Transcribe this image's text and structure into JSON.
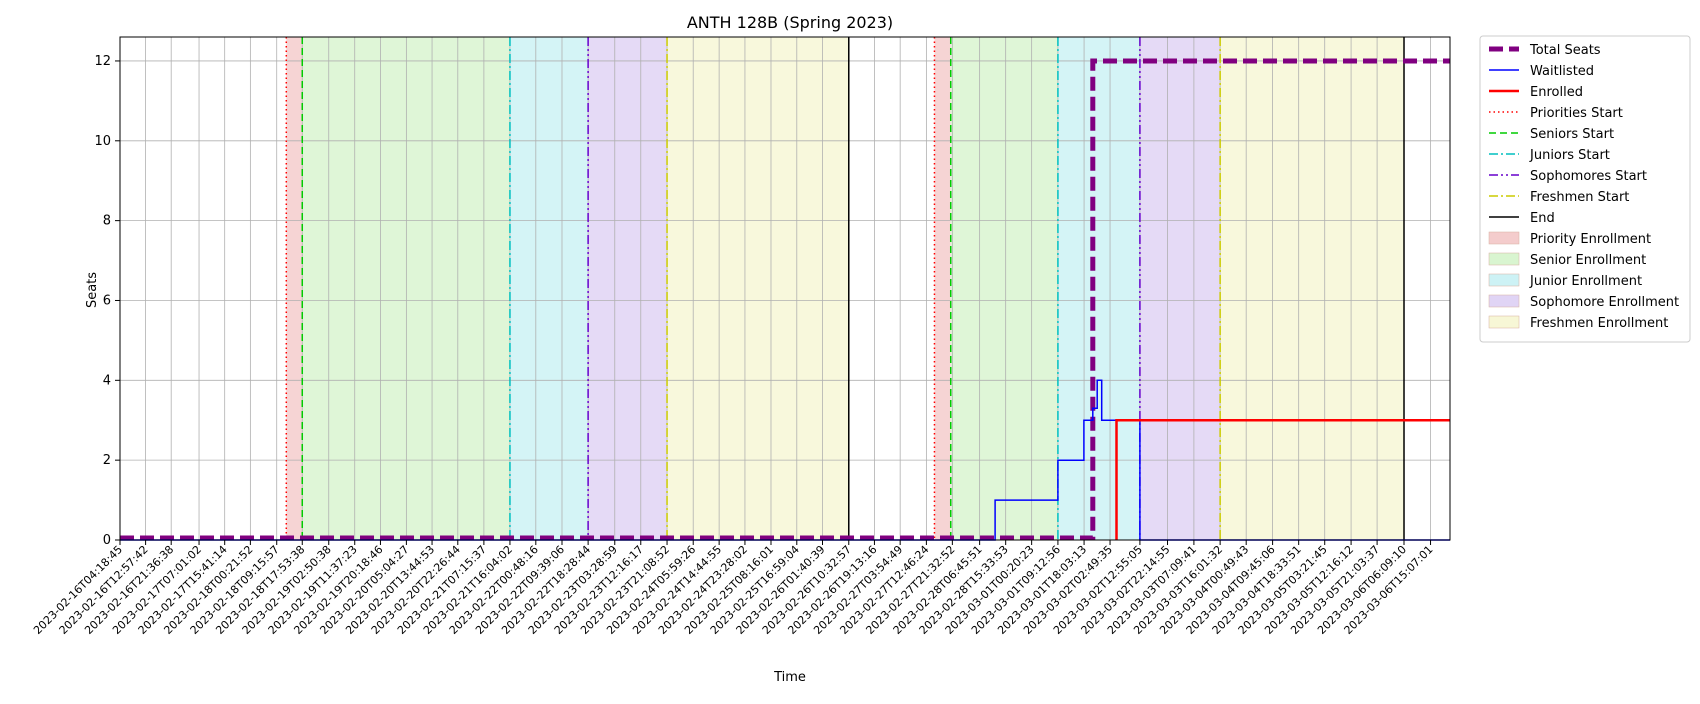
{
  "chart_data": {
    "type": "line",
    "title": "ANTH 128B (Spring 2023)",
    "xlabel": "Time",
    "ylabel": "Seats",
    "ylim": [
      0,
      12.6
    ],
    "xlim": [
      "2023-02-16T04:18:45",
      "2023-03-06T21:41:33"
    ],
    "y_ticks": [
      0,
      2,
      4,
      6,
      8,
      10,
      12
    ],
    "x_ticks": [
      "2023-02-16T04:18:45",
      "2023-02-16T12:57:42",
      "2023-02-16T21:36:38",
      "2023-02-17T07:01:02",
      "2023-02-17T15:41:14",
      "2023-02-18T00:21:52",
      "2023-02-18T09:15:57",
      "2023-02-18T17:53:38",
      "2023-02-19T02:50:38",
      "2023-02-19T11:37:23",
      "2023-02-19T20:18:46",
      "2023-02-20T05:04:27",
      "2023-02-20T13:44:53",
      "2023-02-20T22:26:44",
      "2023-02-21T07:15:37",
      "2023-02-21T16:04:02",
      "2023-02-22T00:48:16",
      "2023-02-22T09:39:06",
      "2023-02-22T18:28:44",
      "2023-02-23T03:28:59",
      "2023-02-23T12:16:17",
      "2023-02-23T21:08:52",
      "2023-02-24T05:59:26",
      "2023-02-24T14:44:55",
      "2023-02-24T23:28:02",
      "2023-02-25T08:16:01",
      "2023-02-25T16:59:04",
      "2023-02-26T01:40:39",
      "2023-02-26T10:32:57",
      "2023-02-26T19:13:16",
      "2023-02-27T03:54:49",
      "2023-02-27T12:46:24",
      "2023-02-27T21:32:52",
      "2023-02-28T06:45:51",
      "2023-02-28T15:33:53",
      "2023-03-01T00:20:23",
      "2023-03-01T09:12:56",
      "2023-03-01T18:03:13",
      "2023-03-02T02:49:35",
      "2023-03-02T12:55:05",
      "2023-03-02T22:14:55",
      "2023-03-03T07:09:41",
      "2023-03-03T16:01:32",
      "2023-03-04T00:49:43",
      "2023-03-04T09:45:06",
      "2023-03-04T18:33:51",
      "2023-03-05T03:21:45",
      "2023-03-05T12:16:12",
      "2023-03-05T21:03:37",
      "2023-03-06T06:09:10",
      "2023-03-06T15:07:01"
    ],
    "grid": true,
    "legend_placement": "outside-top-right",
    "series": [
      {
        "name": "Total Seats",
        "color": "#800080",
        "style": "dashed-thick",
        "points": [
          [
            "2023-02-16T04:18:45",
            0.05
          ],
          [
            "2023-03-01T21:00:00",
            0.05
          ],
          [
            "2023-03-01T21:00:00",
            12
          ],
          [
            "2023-03-06T21:41:33",
            12
          ]
        ]
      },
      {
        "name": "Waitlisted",
        "color": "#0000ff",
        "style": "solid",
        "points": [
          [
            "2023-02-16T04:18:45",
            0
          ],
          [
            "2023-02-28T12:00:00",
            0
          ],
          [
            "2023-02-28T12:00:00",
            1
          ],
          [
            "2023-03-01T09:12:56",
            1
          ],
          [
            "2023-03-01T09:12:56",
            2
          ],
          [
            "2023-03-01T18:00:00",
            2
          ],
          [
            "2023-03-01T18:00:00",
            3
          ],
          [
            "2023-03-01T21:00:00",
            3
          ],
          [
            "2023-03-01T21:00:00",
            3.3
          ],
          [
            "2023-03-01T22:30:00",
            3.3
          ],
          [
            "2023-03-01T22:30:00",
            4
          ],
          [
            "2023-03-02T00:00:00",
            4
          ],
          [
            "2023-03-02T00:00:00",
            3
          ],
          [
            "2023-03-02T12:55:05",
            3
          ],
          [
            "2023-03-02T12:55:05",
            0
          ],
          [
            "2023-03-06T21:41:33",
            0
          ]
        ]
      },
      {
        "name": "Enrolled",
        "color": "#ff0000",
        "style": "solid-thick",
        "points": [
          [
            "2023-03-02T05:00:00",
            0
          ],
          [
            "2023-03-02T05:00:00",
            3
          ],
          [
            "2023-03-06T21:41:33",
            3
          ]
        ]
      }
    ],
    "markers": [
      {
        "name": "Priorities Start",
        "color": "#ff0000",
        "style": "dotted",
        "x": [
          "2023-02-18T12:30:00",
          "2023-02-27T15:30:00"
        ]
      },
      {
        "name": "Seniors Start",
        "color": "#00cc00",
        "style": "dashed",
        "x": [
          "2023-02-18T17:53:38",
          "2023-02-27T21:00:00"
        ]
      },
      {
        "name": "Juniors Start",
        "color": "#00bfbf",
        "style": "dashdot",
        "x": [
          "2023-02-21T16:04:02",
          "2023-03-01T09:12:56"
        ]
      },
      {
        "name": "Sophomores Start",
        "color": "#6600cc",
        "style": "dashdotdot",
        "x": [
          "2023-02-22T18:28:44",
          "2023-03-02T12:55:05"
        ]
      },
      {
        "name": "Freshmen Start",
        "color": "#cccc00",
        "style": "dashdot",
        "x": [
          "2023-02-23T21:08:52",
          "2023-03-03T16:01:32"
        ]
      },
      {
        "name": "End",
        "color": "#000000",
        "style": "solid",
        "x": [
          "2023-02-26T10:32:57",
          "2023-03-06T06:09:10"
        ]
      }
    ],
    "regions": [
      {
        "name": "Priority Enrollment",
        "color": "#f4cccc",
        "spans": [
          [
            "2023-02-18T12:30:00",
            "2023-02-18T17:53:38"
          ],
          [
            "2023-02-27T15:30:00",
            "2023-02-27T21:00:00"
          ]
        ]
      },
      {
        "name": "Senior Enrollment",
        "color": "#d9f5d0",
        "spans": [
          [
            "2023-02-18T17:53:38",
            "2023-02-21T16:04:02"
          ],
          [
            "2023-02-27T21:00:00",
            "2023-03-01T09:12:56"
          ]
        ]
      },
      {
        "name": "Junior Enrollment",
        "color": "#cdf2f5",
        "spans": [
          [
            "2023-02-21T16:04:02",
            "2023-02-22T18:28:44"
          ],
          [
            "2023-03-01T09:12:56",
            "2023-03-02T12:55:05"
          ]
        ]
      },
      {
        "name": "Sophomore Enrollment",
        "color": "#e0d4f5",
        "spans": [
          [
            "2023-02-22T18:28:44",
            "2023-02-23T21:08:52"
          ],
          [
            "2023-03-02T12:55:05",
            "2023-03-03T16:01:32"
          ]
        ]
      },
      {
        "name": "Freshmen Enrollment",
        "color": "#f7f7d6",
        "spans": [
          [
            "2023-02-23T21:08:52",
            "2023-02-26T10:32:57"
          ],
          [
            "2023-03-03T16:01:32",
            "2023-03-06T06:09:10"
          ]
        ]
      }
    ],
    "legend": [
      {
        "label": "Total Seats",
        "kind": "line",
        "color": "#800080",
        "style": "dashed-thick"
      },
      {
        "label": "Waitlisted",
        "kind": "line",
        "color": "#0000ff",
        "style": "solid"
      },
      {
        "label": "Enrolled",
        "kind": "line",
        "color": "#ff0000",
        "style": "solid-thick"
      },
      {
        "label": "Priorities Start",
        "kind": "line",
        "color": "#ff0000",
        "style": "dotted"
      },
      {
        "label": "Seniors Start",
        "kind": "line",
        "color": "#00cc00",
        "style": "dashed"
      },
      {
        "label": "Juniors Start",
        "kind": "line",
        "color": "#00bfbf",
        "style": "dashdot"
      },
      {
        "label": "Sophomores Start",
        "kind": "line",
        "color": "#6600cc",
        "style": "dashdotdot"
      },
      {
        "label": "Freshmen Start",
        "kind": "line",
        "color": "#cccc00",
        "style": "dashdot"
      },
      {
        "label": "End",
        "kind": "line",
        "color": "#000000",
        "style": "solid"
      },
      {
        "label": "Priority Enrollment",
        "kind": "patch",
        "color": "#f4cccc"
      },
      {
        "label": "Senior Enrollment",
        "kind": "patch",
        "color": "#d9f5d0"
      },
      {
        "label": "Junior Enrollment",
        "kind": "patch",
        "color": "#cdf2f5"
      },
      {
        "label": "Sophomore Enrollment",
        "kind": "patch",
        "color": "#e0d4f5"
      },
      {
        "label": "Freshmen Enrollment",
        "kind": "patch",
        "color": "#f7f7d6"
      }
    ]
  }
}
